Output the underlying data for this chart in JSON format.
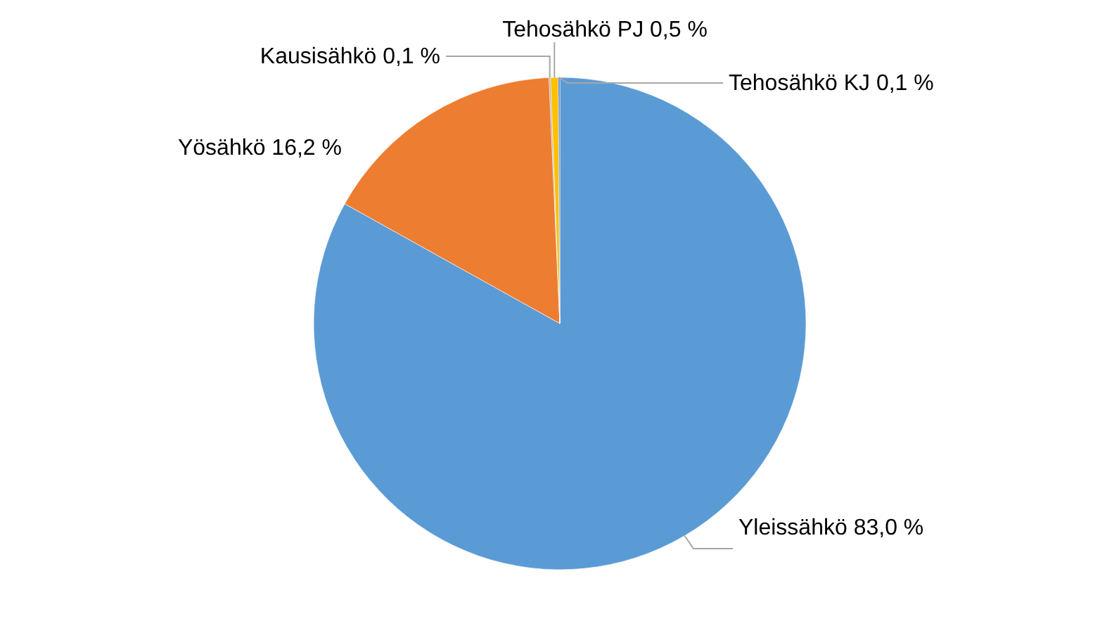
{
  "chart_data": {
    "type": "pie",
    "categories": [
      "Yleissähkö",
      "Yösähkö",
      "Kausisähkö",
      "Tehosähkö PJ",
      "Tehosähkö KJ"
    ],
    "values": [
      83.0,
      16.2,
      0.1,
      0.5,
      0.1
    ],
    "colors": [
      "#5b9bd5",
      "#ed7d31",
      "#a5a5a5",
      "#ffc000",
      "#4472c4"
    ],
    "value_labels": [
      "83,0 %",
      "16,2 %",
      "0,1 %",
      "0,5 %",
      "0,1 %"
    ],
    "legend": false
  }
}
